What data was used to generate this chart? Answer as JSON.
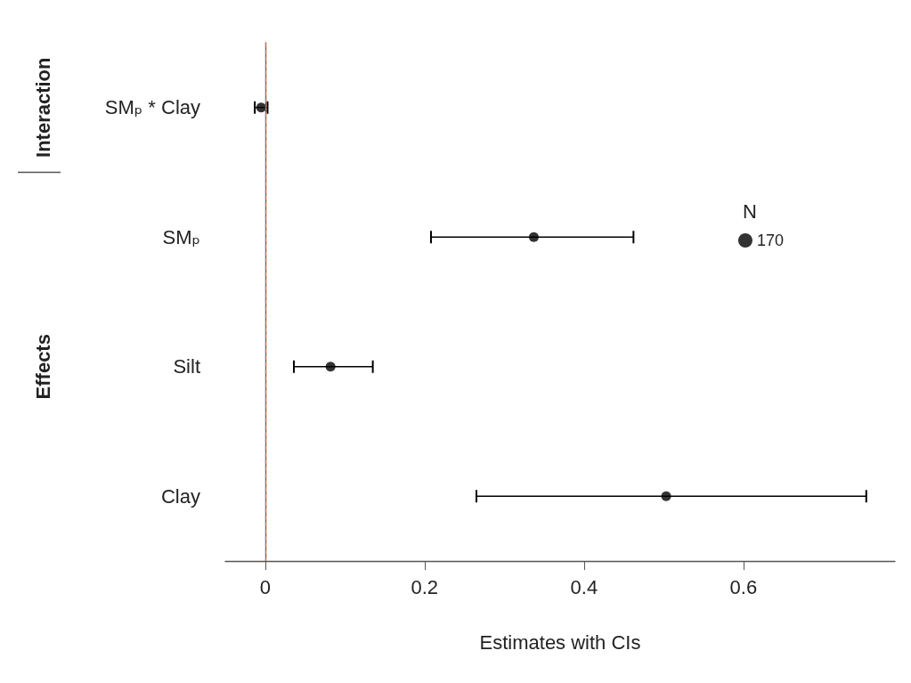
{
  "chart_data": {
    "type": "scatter",
    "orientation": "horizontal",
    "categories": [
      "SMₚ * Clay",
      "SMₚ",
      "Silt",
      "Clay"
    ],
    "series": [
      {
        "name": "170",
        "color": "#000000",
        "values": [
          -0.005,
          0.337,
          0.082,
          0.503
        ],
        "errors": [
          [
            -0.013,
            0.003
          ],
          [
            0.208,
            0.462
          ],
          [
            0.036,
            0.135
          ],
          [
            0.265,
            0.754
          ]
        ]
      }
    ],
    "marker": "circle",
    "xlim": [
      -0.05,
      0.79
    ],
    "xticks": [
      0,
      0.2,
      0.4,
      0.6
    ],
    "xlabel": "Estimates with CIs",
    "legend_title": "N",
    "legend": "top right",
    "ref_lines": [
      {
        "axis": "x",
        "value": 0,
        "color": "#d9704c",
        "line_style": "dashed"
      }
    ],
    "annotations": [
      "Interaction",
      "Effects"
    ],
    "grid": false
  }
}
